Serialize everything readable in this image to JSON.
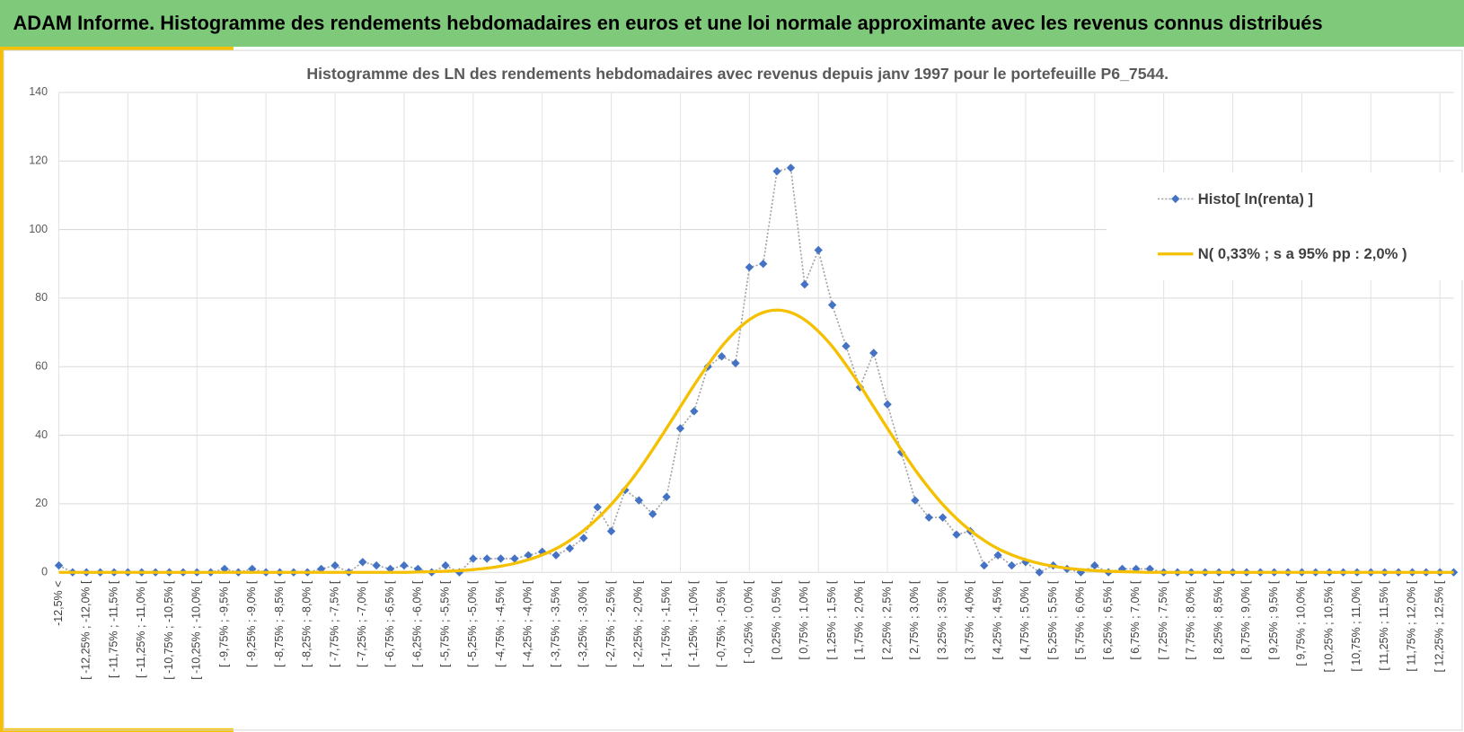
{
  "header": {
    "title": "ADAM Informe. Histogramme des rendements hebdomadaires en euros et une loi normale approximante avec les revenus connus distribués"
  },
  "chart_data": {
    "type": "line",
    "title": "Histogramme des LN des rendements hebdomadaires avec revenus depuis janv 1997 pour le portefeuille P6_7544.",
    "categories": [
      "-12,5% <",
      null,
      "[ -12,25% ; -12,0% [",
      null,
      "[ -11,75% ; -11,5% [",
      null,
      "[ -11,25% ; -11,0% [",
      null,
      "[ -10,75% ; -10,5% [",
      null,
      "[ -10,25% ; -10,0% [",
      null,
      "[ -9,75% ; -9,5% [",
      null,
      "[ -9,25% ; -9,0% [",
      null,
      "[ -8,75% ; -8,5% [",
      null,
      "[ -8,25% ; -8,0% [",
      null,
      "[ -7,75% ; -7,5% [",
      null,
      "[ -7,25% ; -7,0% [",
      null,
      "[ -6,75% ; -6,5% [",
      null,
      "[ -6,25% ; -6,0% [",
      null,
      "[ -5,75% ; -5,5% [",
      null,
      "[ -5,25% ; -5,0% [",
      null,
      "[ -4,75% ; -4,5% [",
      null,
      "[ -4,25% ; -4,0% [",
      null,
      "[ -3,75% ; -3,5% [",
      null,
      "[ -3,25% ; -3,0% [",
      null,
      "[ -2,75% ; -2,5% [",
      null,
      "[ -2,25% ; -2,0% [",
      null,
      "[ -1,75% ; -1,5% [",
      null,
      "[ -1,25% ; -1,0% [",
      null,
      "[ -0,75% ; -0,5% [",
      null,
      "[ -0,25% ; 0,0% [",
      null,
      "[ 0,25% ; 0,5% [",
      null,
      "[ 0,75% ; 1,0% [",
      null,
      "[ 1,25% ; 1,5% [",
      null,
      "[ 1,75% ; 2,0% [",
      null,
      "[ 2,25% ; 2,5% [",
      null,
      "[ 2,75% ; 3,0% [",
      null,
      "[ 3,25% ; 3,5% [",
      null,
      "[ 3,75% ; 4,0% [",
      null,
      "[ 4,25% ; 4,5% [",
      null,
      "[ 4,75% ; 5,0% [",
      null,
      "[ 5,25% ; 5,5% [",
      null,
      "[ 5,75% ; 6,0% [",
      null,
      "[ 6,25% ; 6,5% [",
      null,
      "[ 6,75% ; 7,0% [",
      null,
      "[ 7,25% ; 7,5% [",
      null,
      "[ 7,75% ; 8,0% [",
      null,
      "[ 8,25% ; 8,5% [",
      null,
      "[ 8,75% ; 9,0% [",
      null,
      "[ 9,25% ; 9,5% [",
      null,
      "[ 9,75% ; 10,0% [",
      null,
      "[ 10,25% ; 10,5% [",
      null,
      "[ 10,75% ; 11,0% [",
      null,
      "[ 11,25% ; 11,5% [",
      null,
      "[ 11,75% ; 12,0% [",
      null,
      "[ 12,25% ; 12,5% [",
      null
    ],
    "series": [
      {
        "name": "Histo[ ln(renta) ]",
        "color": "#4472c4",
        "line_color": "#a5a5a5",
        "marker": "diamond",
        "values": [
          2,
          0,
          0,
          0,
          0,
          0,
          0,
          0,
          0,
          0,
          0,
          0,
          1,
          0,
          1,
          0,
          0,
          0,
          0,
          1,
          2,
          0,
          3,
          2,
          1,
          2,
          1,
          0,
          2,
          0,
          4,
          4,
          4,
          4,
          5,
          6,
          5,
          7,
          10,
          19,
          12,
          24,
          21,
          17,
          22,
          42,
          47,
          60,
          63,
          61,
          89,
          90,
          117,
          118,
          84,
          94,
          78,
          66,
          54,
          64,
          49,
          35,
          21,
          16,
          16,
          11,
          12,
          2,
          5,
          2,
          3,
          0,
          2,
          1,
          0,
          2,
          0,
          1,
          1,
          1,
          0,
          0,
          0,
          0,
          0,
          0,
          0,
          0,
          0,
          0,
          0,
          0,
          0,
          0,
          0,
          0,
          0,
          0,
          0,
          0,
          0,
          0
        ]
      },
      {
        "name": "N( 0,33% ; s a 95% pp : 2,0% )",
        "color": "#f5c000",
        "values": [
          0,
          0,
          0,
          0,
          0,
          0,
          0,
          0,
          0,
          0,
          0,
          0,
          0,
          0,
          0,
          0,
          0,
          0,
          0,
          0,
          0,
          0,
          0,
          0,
          0,
          0,
          0.1,
          0.2,
          0.3,
          0.5,
          0.8,
          1.2,
          1.8,
          2.6,
          3.7,
          5.1,
          6.9,
          9.3,
          12.2,
          15.7,
          19.8,
          24.6,
          29.9,
          35.8,
          42.0,
          48.3,
          54.6,
          60.5,
          65.9,
          70.3,
          73.7,
          75.8,
          76.5,
          75.8,
          73.7,
          70.3,
          65.9,
          60.5,
          54.6,
          48.3,
          42.0,
          35.8,
          29.9,
          24.6,
          19.8,
          15.7,
          12.2,
          9.3,
          6.9,
          5.1,
          3.7,
          2.6,
          1.8,
          1.2,
          0.8,
          0.5,
          0.3,
          0.2,
          0.1,
          0,
          0,
          0,
          0,
          0,
          0,
          0,
          0,
          0,
          0,
          0,
          0,
          0,
          0,
          0,
          0,
          0,
          0,
          0,
          0,
          0,
          0,
          0
        ]
      }
    ],
    "ylim": [
      0,
      140
    ],
    "yticks": [
      0,
      20,
      40,
      60,
      80,
      100,
      120,
      140
    ],
    "grid": true,
    "legend": "right"
  }
}
